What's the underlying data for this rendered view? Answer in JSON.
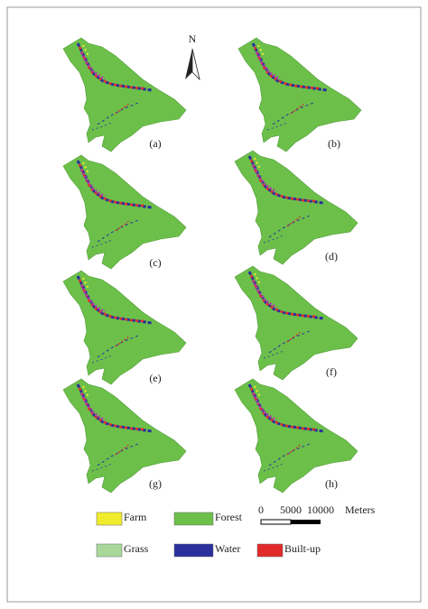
{
  "north_label": "N",
  "panels": [
    "(a)",
    "(b)",
    "(c)",
    "(d)",
    "(e)",
    "(f)",
    "(g)",
    "(h)"
  ],
  "legend": [
    {
      "label": "Farm",
      "color": "#f1ec2b"
    },
    {
      "label": "Forest",
      "color": "#6cc04a"
    },
    {
      "label": "Grass",
      "color": "#a9d99a"
    },
    {
      "label": "Water",
      "color": "#2a2f9e"
    },
    {
      "label": "Built-up",
      "color": "#e22a2a"
    }
  ],
  "scale_bar": {
    "ticks": [
      "0",
      "5000",
      "10000"
    ],
    "unit": "Meters"
  }
}
